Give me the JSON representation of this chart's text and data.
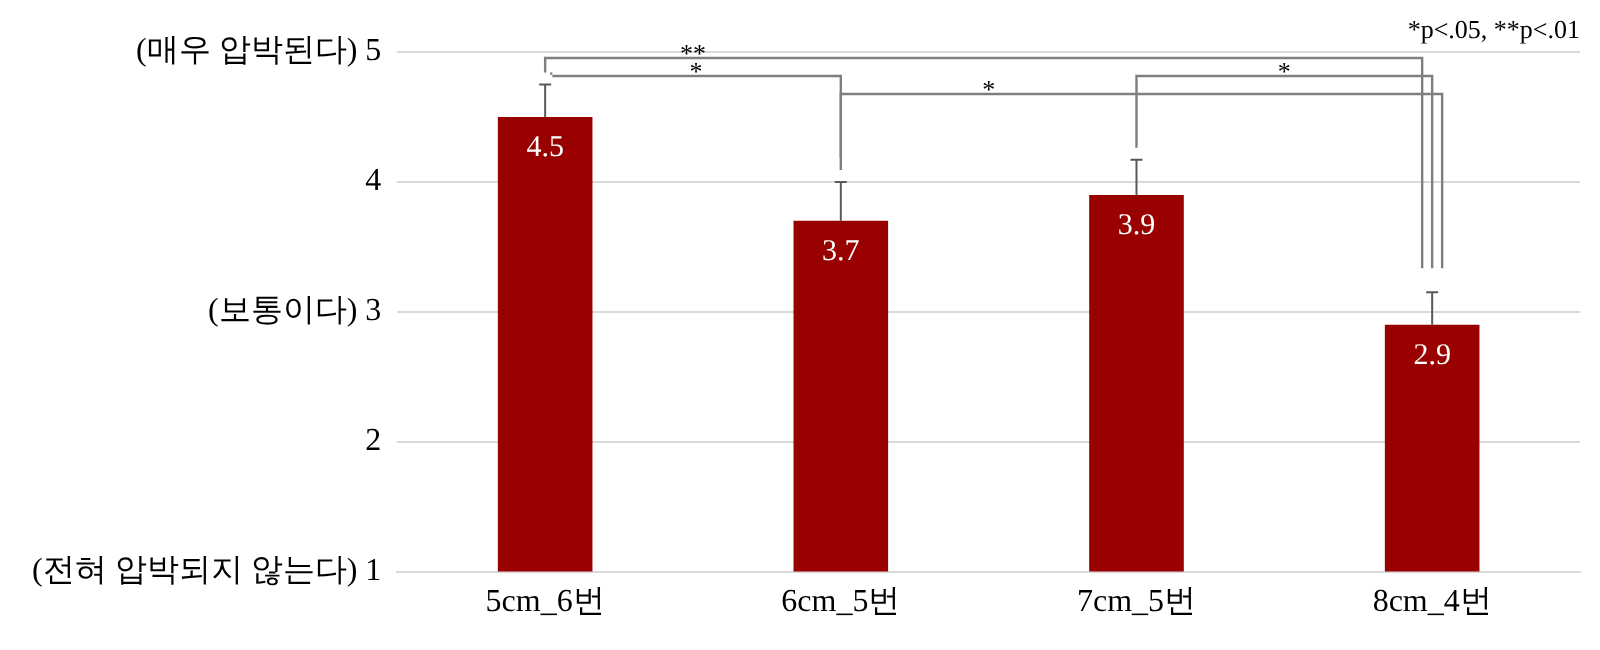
{
  "chart_data": {
    "type": "bar",
    "categories": [
      "5cm_6번",
      "6cm_5번",
      "7cm_5번",
      "8cm_4번"
    ],
    "series": [
      {
        "color": "#990000",
        "values": [
          4.5,
          3.7,
          3.9,
          2.9
        ],
        "errors": [
          0.25,
          0.3,
          0.27,
          0.25
        ]
      }
    ],
    "ylim": [
      1,
      5
    ],
    "yticks": [
      {
        "value": 1,
        "label": "(전혀 압박되지 않는다) 1"
      },
      2,
      {
        "value": 3,
        "label": "(보통이다) 3"
      },
      4,
      {
        "value": 5,
        "label": "(매우 압박된다) 5"
      }
    ],
    "grid": "y",
    "legend": false,
    "data_labels": true,
    "annotations": [
      "**",
      "*",
      "*",
      "*",
      "*p<.05, **p<.01"
    ]
  }
}
